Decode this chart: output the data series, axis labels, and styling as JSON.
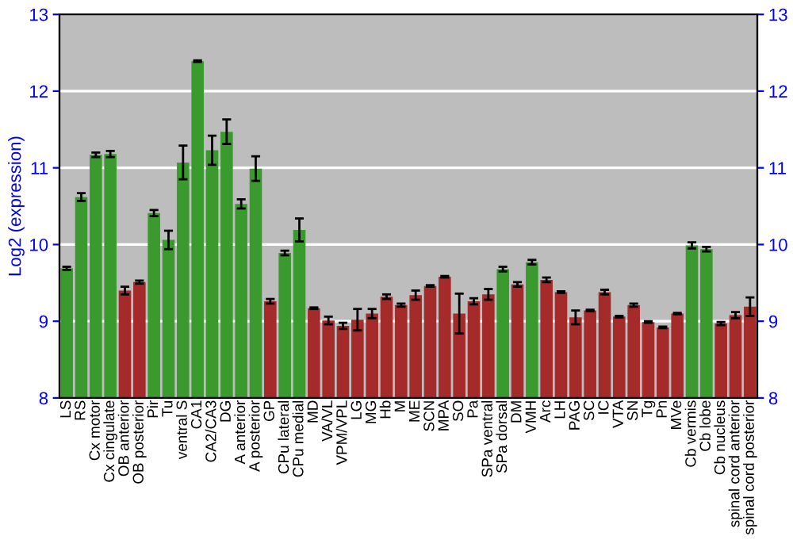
{
  "chart_data": {
    "type": "bar",
    "ylabel": "Log2 (expression)",
    "categories": [
      "LS",
      "RS",
      "Cx motor",
      "Cx cingulate",
      "OB anterior",
      "OB posterior",
      "Pir",
      "Tu",
      "ventral S",
      "CA1",
      "CA2/CA3",
      "DG",
      "A anterior",
      "A posterior",
      "GP",
      "CPu lateral",
      "CPu medial",
      "MD",
      "VA/VL",
      "VPM/VPL",
      "LG",
      "MG",
      "Hb",
      "M",
      "ME",
      "SCN",
      "MPA",
      "SO",
      "Pa",
      "SPa ventral",
      "SPa dorsal",
      "DM",
      "VMH",
      "Arc",
      "LH",
      "PAG",
      "SC",
      "IC",
      "VTA",
      "SN",
      "Tg",
      "Pn",
      "MVe",
      "Cb vermis",
      "Cb lobe",
      "Cb nucleus",
      "spinal cord anterior",
      "spinal cord posterior"
    ],
    "values": [
      9.69,
      10.62,
      11.17,
      11.18,
      9.4,
      9.51,
      10.41,
      10.06,
      11.07,
      12.39,
      11.23,
      11.47,
      10.53,
      10.99,
      9.26,
      9.89,
      10.19,
      9.17,
      9.01,
      8.94,
      9.02,
      9.1,
      9.32,
      9.21,
      9.34,
      9.46,
      9.58,
      9.1,
      9.26,
      9.35,
      9.68,
      9.48,
      9.77,
      9.54,
      9.38,
      9.05,
      9.14,
      9.38,
      9.06,
      9.21,
      8.99,
      8.92,
      9.1,
      9.99,
      9.94,
      8.97,
      9.08,
      9.19
    ],
    "errors": [
      0.02,
      0.05,
      0.03,
      0.04,
      0.05,
      0.02,
      0.04,
      0.12,
      0.22,
      0.01,
      0.19,
      0.16,
      0.06,
      0.16,
      0.03,
      0.03,
      0.15,
      0.01,
      0.05,
      0.04,
      0.14,
      0.06,
      0.03,
      0.02,
      0.06,
      0.01,
      0.01,
      0.26,
      0.04,
      0.07,
      0.03,
      0.03,
      0.03,
      0.03,
      0.01,
      0.09,
      0.01,
      0.03,
      0.01,
      0.02,
      0.01,
      0.01,
      0.01,
      0.04,
      0.03,
      0.02,
      0.04,
      0.12
    ],
    "colors": [
      "#3a9a2e",
      "#3a9a2e",
      "#3a9a2e",
      "#3a9a2e",
      "#a52a2a",
      "#a52a2a",
      "#3a9a2e",
      "#3a9a2e",
      "#3a9a2e",
      "#3a9a2e",
      "#3a9a2e",
      "#3a9a2e",
      "#3a9a2e",
      "#3a9a2e",
      "#a52a2a",
      "#3a9a2e",
      "#3a9a2e",
      "#a52a2a",
      "#a52a2a",
      "#a52a2a",
      "#a52a2a",
      "#a52a2a",
      "#a52a2a",
      "#a52a2a",
      "#a52a2a",
      "#a52a2a",
      "#a52a2a",
      "#a52a2a",
      "#a52a2a",
      "#a52a2a",
      "#3a9a2e",
      "#a52a2a",
      "#3a9a2e",
      "#a52a2a",
      "#a52a2a",
      "#a52a2a",
      "#a52a2a",
      "#a52a2a",
      "#a52a2a",
      "#a52a2a",
      "#a52a2a",
      "#a52a2a",
      "#a52a2a",
      "#3a9a2e",
      "#3a9a2e",
      "#a52a2a",
      "#a52a2a",
      "#a52a2a"
    ],
    "ylim": [
      8,
      13
    ],
    "yticks": [
      8,
      9,
      10,
      11,
      12,
      13
    ],
    "y2lim": [
      8,
      13
    ],
    "y2ticks": [
      8,
      9,
      10,
      11,
      12,
      13
    ],
    "grid": "y"
  }
}
